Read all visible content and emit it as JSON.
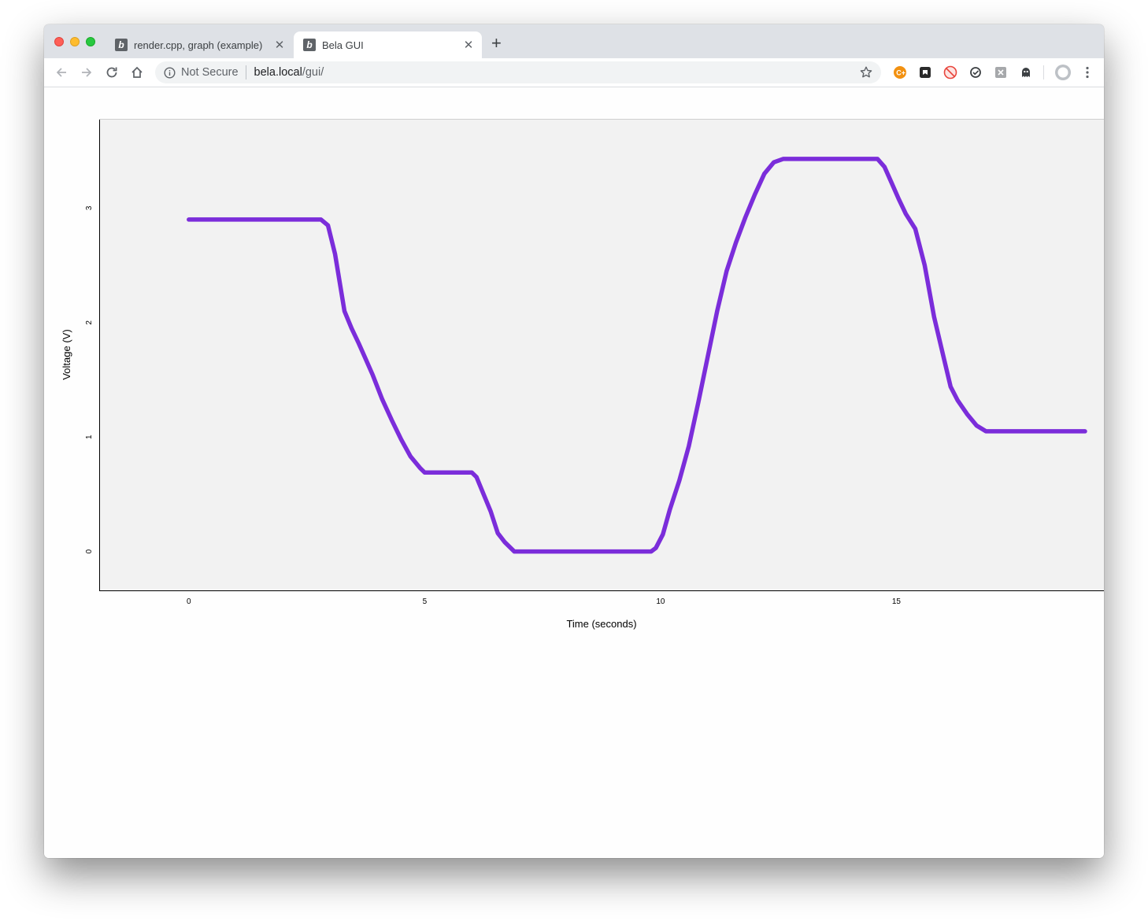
{
  "browser": {
    "tabs": [
      {
        "title": "render.cpp, graph (example)",
        "active": false,
        "favicon": "bela-logo-icon"
      },
      {
        "title": "Bela GUI",
        "active": true,
        "favicon": "bela-logo-icon"
      }
    ],
    "favicon_letter": "b",
    "address": {
      "security_label": "Not Secure",
      "host": "bela.local",
      "path": "/gui/"
    },
    "extensions": [
      "coffeescript-extension-icon",
      "pocket-extension-icon",
      "adblock-extension-icon",
      "sync-extension-icon",
      "close-x-extension-icon",
      "ghost-extension-icon"
    ]
  },
  "chart_data": {
    "type": "line",
    "xlabel": "Time (seconds)",
    "ylabel": "Voltage (V)",
    "xlim": [
      -1.9,
      19.4
    ],
    "ylim": [
      -0.34,
      3.78
    ],
    "xticks": [
      0,
      5,
      10,
      15
    ],
    "yticks": [
      0,
      1,
      2,
      3
    ],
    "grid": false,
    "background": "#f2f2f2",
    "line_color": "#6a11d6",
    "series": [
      {
        "x": [
          0,
          2.8,
          2.95,
          3.1,
          3.3,
          3.45,
          3.6,
          3.75,
          3.9,
          4.1,
          4.3,
          4.5,
          4.7,
          4.9,
          5.0,
          6.0,
          6.1,
          6.25,
          6.4,
          6.55,
          6.7,
          6.9,
          9.8,
          9.9,
          10.05,
          10.2,
          10.4,
          10.6,
          10.8,
          11.0,
          11.2,
          11.4,
          11.6,
          11.8,
          12.0,
          12.2,
          12.4,
          12.6,
          12.7,
          14.6,
          14.75,
          14.9,
          15.05,
          15.2,
          15.4,
          15.6,
          15.8,
          16.0,
          16.15,
          16.3,
          16.5,
          16.7,
          16.9,
          17.05,
          17.2,
          19.0
        ],
        "y": [
          2.9,
          2.9,
          2.85,
          2.6,
          2.1,
          1.95,
          1.82,
          1.68,
          1.54,
          1.33,
          1.15,
          0.98,
          0.83,
          0.73,
          0.69,
          0.69,
          0.65,
          0.5,
          0.35,
          0.16,
          0.08,
          0.0,
          0.0,
          0.03,
          0.15,
          0.37,
          0.62,
          0.92,
          1.3,
          1.7,
          2.1,
          2.45,
          2.7,
          2.92,
          3.12,
          3.3,
          3.4,
          3.43,
          3.43,
          3.43,
          3.36,
          3.22,
          3.08,
          2.95,
          2.82,
          2.5,
          2.05,
          1.7,
          1.44,
          1.32,
          1.2,
          1.1,
          1.05,
          1.05,
          1.05,
          1.05
        ]
      }
    ]
  }
}
